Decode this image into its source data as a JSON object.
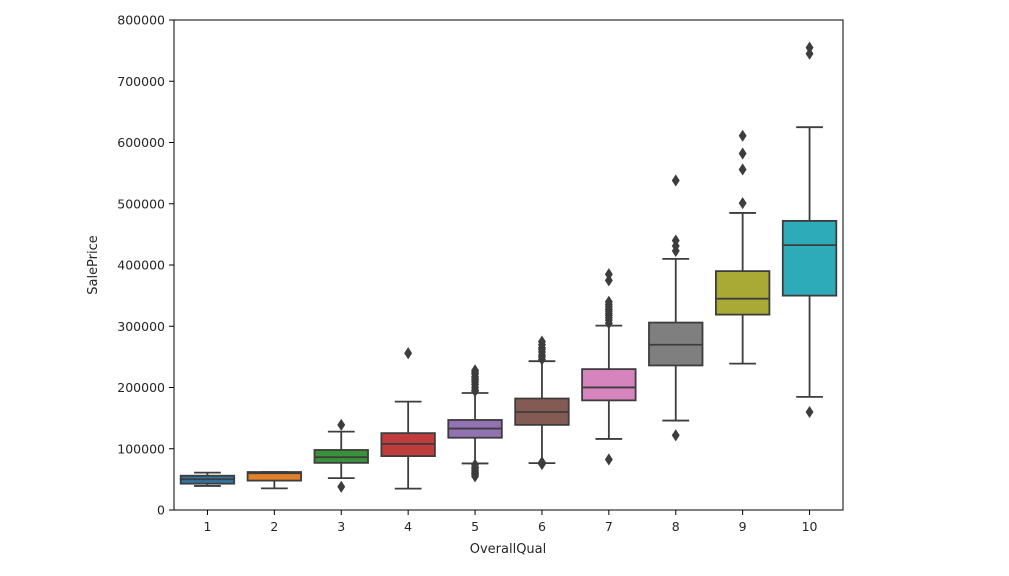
{
  "chart_data": {
    "type": "boxplot",
    "xlabel": "OverallQual",
    "ylabel": "SalePrice",
    "ylim": [
      0,
      800000
    ],
    "yticks": [
      0,
      100000,
      200000,
      300000,
      400000,
      500000,
      600000,
      700000,
      800000
    ],
    "categories": [
      "1",
      "2",
      "3",
      "4",
      "5",
      "6",
      "7",
      "8",
      "9",
      "10"
    ],
    "boxes": [
      {
        "category": "1",
        "color": "#3274a1",
        "whislo": 39300,
        "q1": 43000,
        "med": 50150,
        "q3": 56000,
        "whishi": 61000,
        "fliers": []
      },
      {
        "category": "2",
        "color": "#e1812c",
        "whislo": 35300,
        "q1": 48000,
        "med": 60000,
        "q3": 62000,
        "whishi": 62000,
        "fliers": []
      },
      {
        "category": "3",
        "color": "#3a923a",
        "whislo": 52000,
        "q1": 77000,
        "med": 86250,
        "q3": 98000,
        "whishi": 128000,
        "fliers": [
          37900,
          139000
        ]
      },
      {
        "category": "4",
        "color": "#c03d3e",
        "whislo": 34900,
        "q1": 88000,
        "med": 108000,
        "q3": 125500,
        "whishi": 177000,
        "fliers": [
          256000
        ]
      },
      {
        "category": "5",
        "color": "#9372b2",
        "whislo": 76000,
        "q1": 118000,
        "med": 133000,
        "q3": 147000,
        "whishi": 191000,
        "fliers": [
          55000,
          58000,
          60000,
          62000,
          65000,
          68000,
          70000,
          74000,
          194000,
          196000,
          200000,
          205000,
          209000,
          212000,
          215000,
          218000,
          222000,
          225000,
          228000
        ]
      },
      {
        "category": "6",
        "color": "#845b53",
        "whislo": 76500,
        "q1": 139000,
        "med": 160000,
        "q3": 182000,
        "whishi": 243000,
        "fliers": [
          75000,
          78000,
          246000,
          250000,
          253000,
          258000,
          262000,
          265000,
          270000,
          275000
        ]
      },
      {
        "category": "7",
        "color": "#d684bd",
        "whislo": 116000,
        "q1": 179000,
        "med": 200141,
        "q3": 230000,
        "whishi": 301000,
        "fliers": [
          82500,
          305000,
          310000,
          314000,
          318000,
          321000,
          325000,
          328000,
          332000,
          336000,
          340000,
          375000,
          385000
        ]
      },
      {
        "category": "8",
        "color": "#7f7f7f",
        "whislo": 146000,
        "q1": 236000,
        "med": 269750,
        "q3": 306000,
        "whishi": 410000,
        "fliers": [
          122000,
          423000,
          431000,
          440000,
          538000
        ]
      },
      {
        "category": "9",
        "color": "#a9aa35",
        "whislo": 239000,
        "q1": 319000,
        "med": 345000,
        "q3": 390000,
        "whishi": 485000,
        "fliers": [
          501000,
          556000,
          582000,
          611000
        ]
      },
      {
        "category": "10",
        "color": "#2eabb8",
        "whislo": 184750,
        "q1": 350000,
        "med": 432390,
        "q3": 472000,
        "whishi": 625000,
        "fliers": [
          160000,
          745000,
          755000
        ]
      }
    ]
  }
}
